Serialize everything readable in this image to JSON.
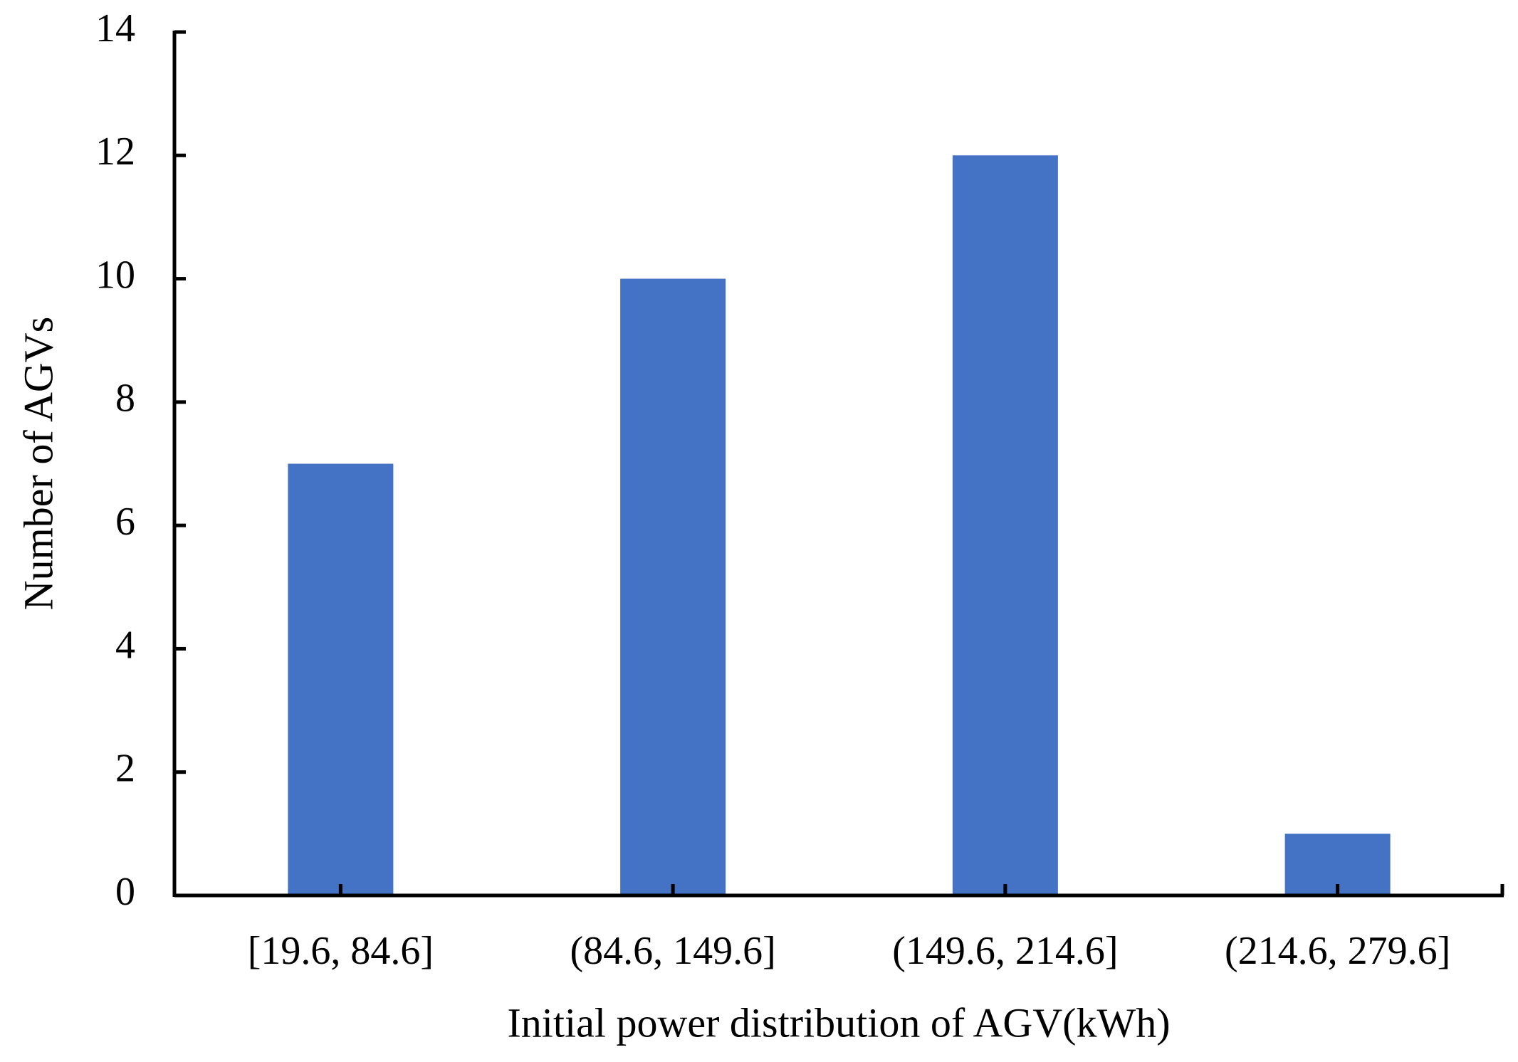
{
  "chart_data": {
    "type": "bar",
    "categories": [
      "[19.6, 84.6]",
      "(84.6, 149.6]",
      "(149.6, 214.6]",
      "(214.6, 279.6]"
    ],
    "values": [
      7,
      10,
      12,
      1
    ],
    "color": "#4472c4",
    "x_label": "Initial power distribution of AGV(kWh)",
    "y_label": "Number of AGVs",
    "ylim": [
      0,
      14
    ],
    "yticks": [
      0,
      2,
      4,
      6,
      8,
      10,
      12,
      14
    ],
    "grid": false
  }
}
